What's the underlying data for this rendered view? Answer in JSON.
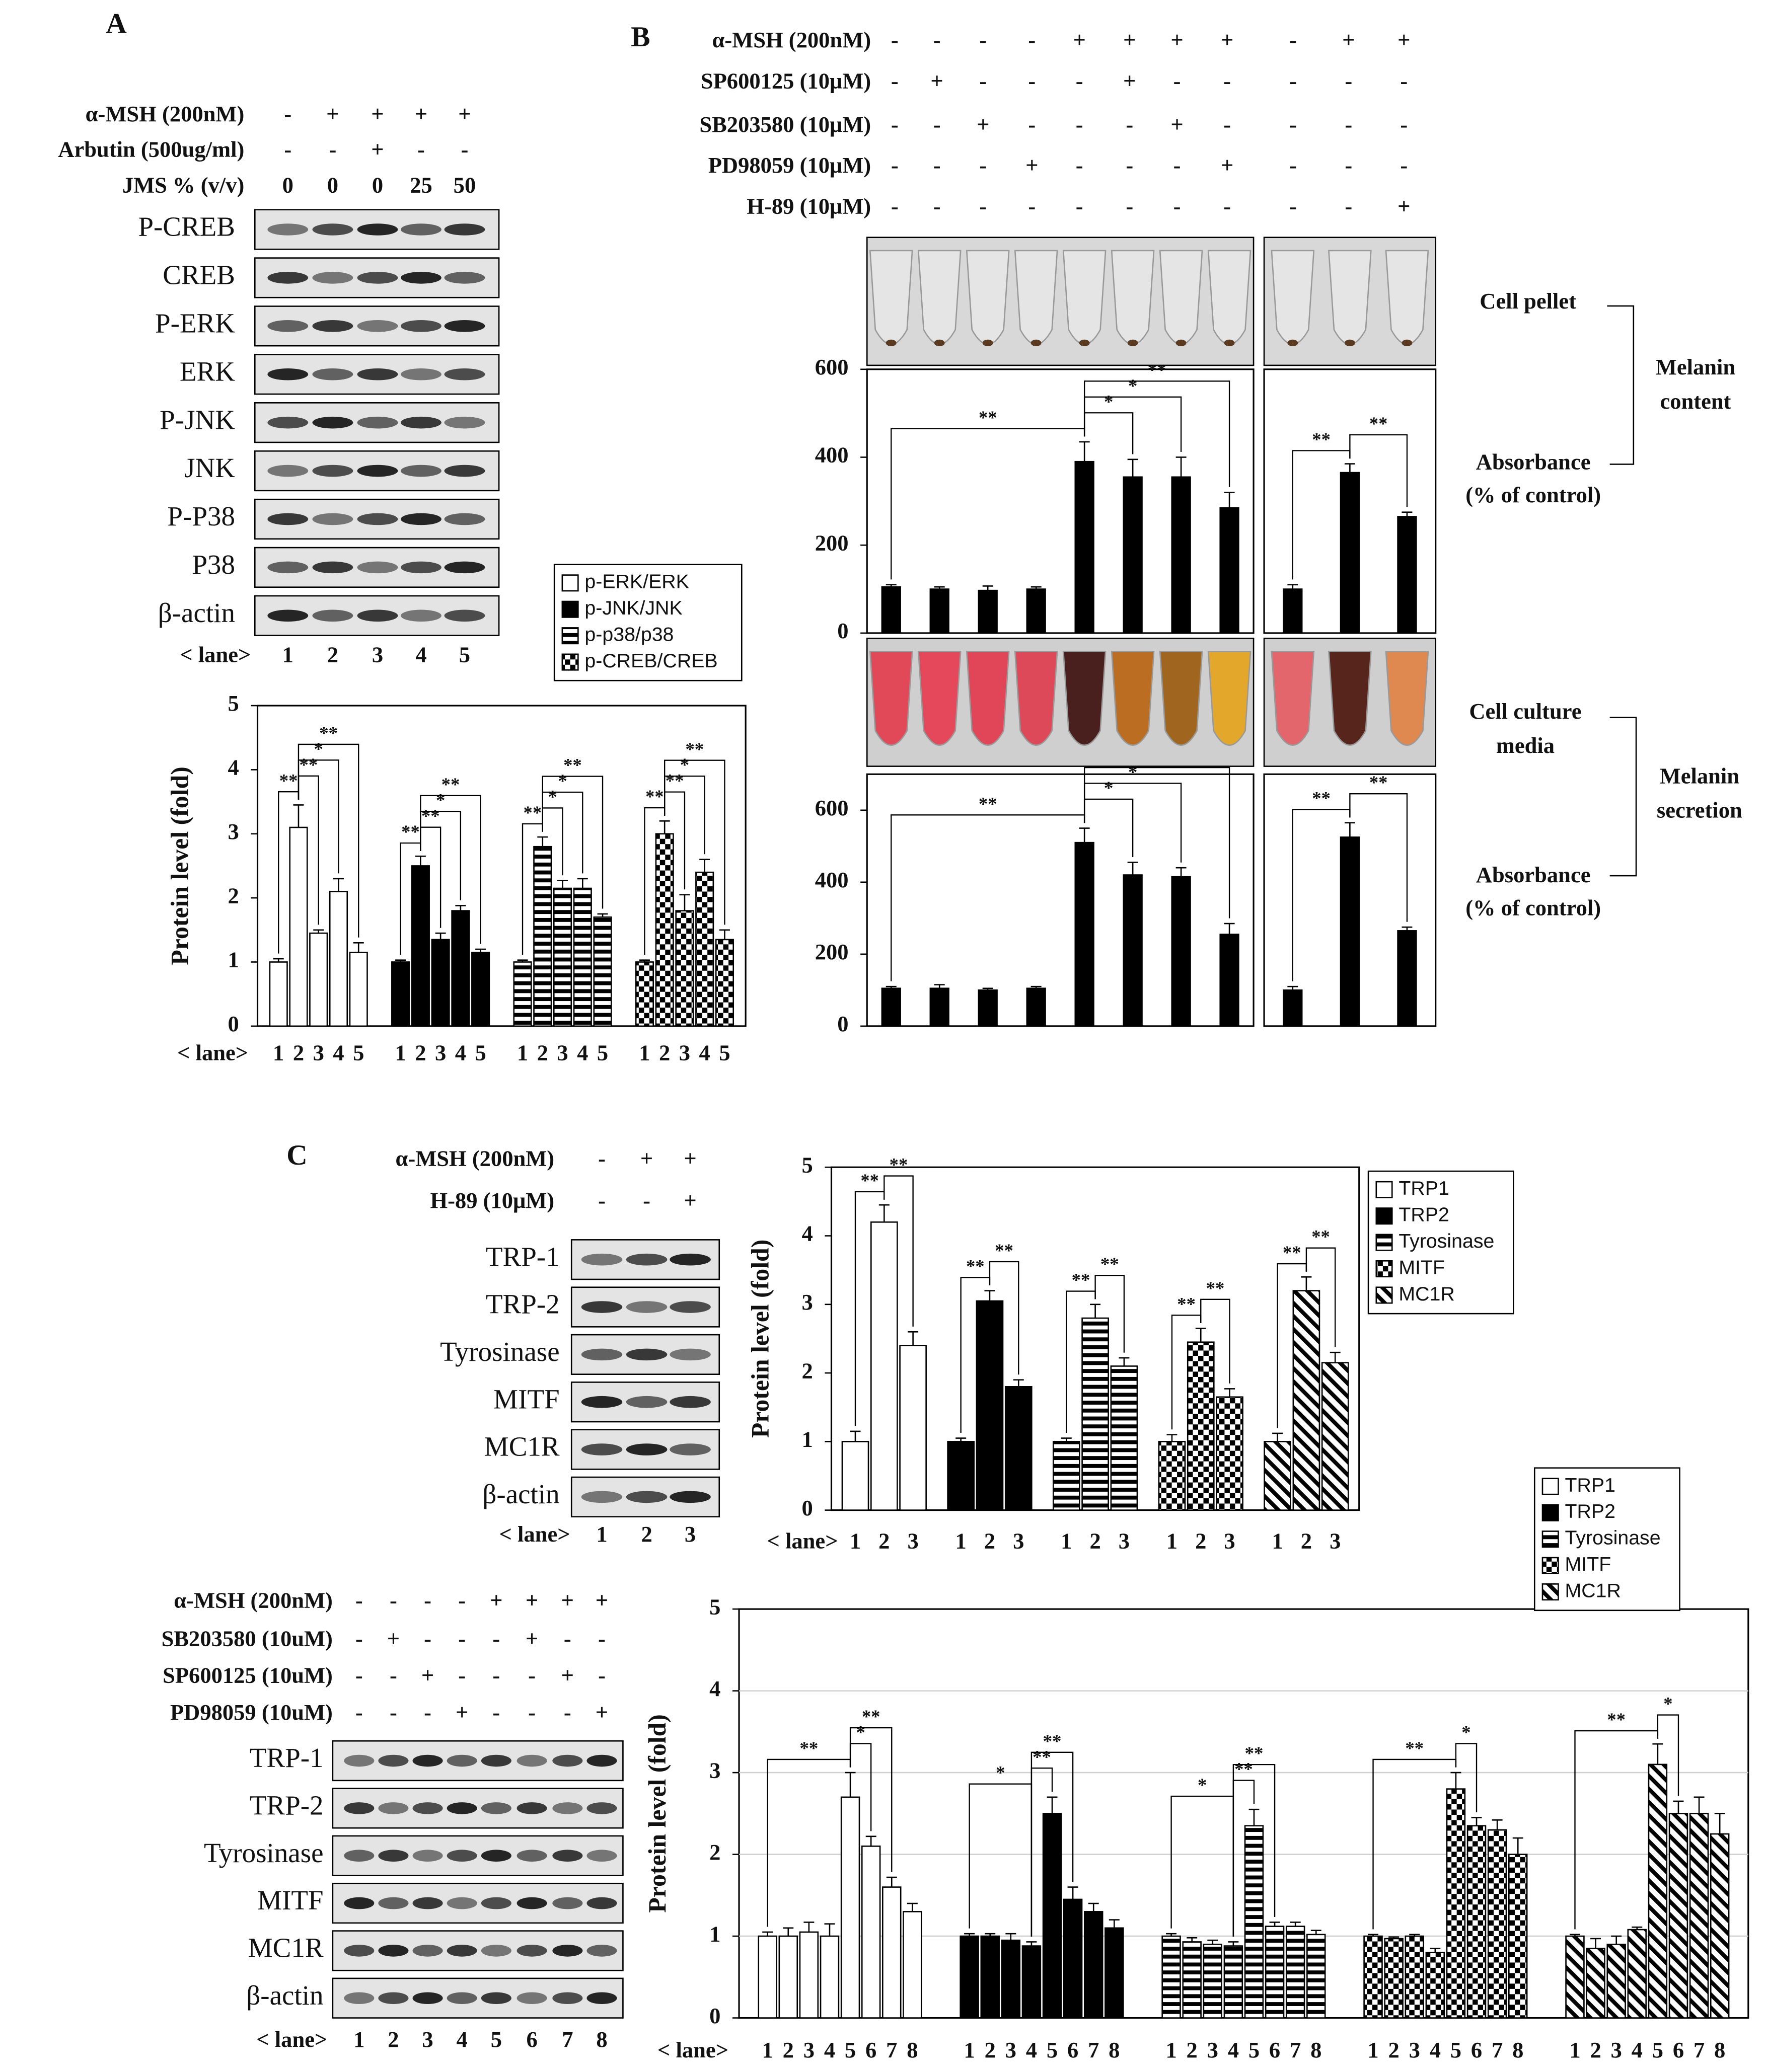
{
  "panels": {
    "a": "A",
    "b": "B",
    "c": "C"
  },
  "blot_a": {
    "treatments": [
      {
        "label": "α-MSH (200nM)",
        "marks": [
          "-",
          "+",
          "+",
          "+",
          "+"
        ]
      },
      {
        "label": "Arbutin (500ug/ml)",
        "marks": [
          "-",
          "-",
          "+",
          "-",
          "-"
        ]
      },
      {
        "label": "JMS % (v/v)",
        "marks": [
          "0",
          "0",
          "0",
          "25",
          "50"
        ]
      }
    ],
    "rows": [
      "P-CREB",
      "CREB",
      "P-ERK",
      "ERK",
      "P-JNK",
      "JNK",
      "P-P38",
      "P38",
      "β-actin"
    ],
    "lane_label": "< lane>",
    "lanes": [
      "1",
      "2",
      "3",
      "4",
      "5"
    ]
  },
  "table_b": {
    "treatments": [
      {
        "label": "α-MSH (200nM)",
        "marks": [
          "-",
          "-",
          "-",
          "-",
          "+",
          "+",
          "+",
          "+",
          "-",
          "+",
          "+"
        ]
      },
      {
        "label": "SP600125 (10μM)",
        "marks": [
          "-",
          "+",
          "-",
          "-",
          "-",
          "+",
          "-",
          "-",
          "-",
          "-",
          "-"
        ]
      },
      {
        "label": "SB203580 (10μM)",
        "marks": [
          "-",
          "-",
          "+",
          "-",
          "-",
          "-",
          "+",
          "-",
          "-",
          "-",
          "-"
        ]
      },
      {
        "label": "PD98059 (10μM)",
        "marks": [
          "-",
          "-",
          "-",
          "+",
          "-",
          "-",
          "-",
          "+",
          "-",
          "-",
          "-"
        ]
      },
      {
        "label": "H-89 (10μM)",
        "marks": [
          "-",
          "-",
          "-",
          "-",
          "-",
          "-",
          "-",
          "-",
          "-",
          "-",
          "+"
        ]
      }
    ]
  },
  "panel_b_labels": {
    "cell_pellet": "Cell pellet",
    "melanin_content": [
      "Melanin",
      "content"
    ],
    "absorbance_content": [
      "Absorbance",
      "(% of control)"
    ],
    "cell_culture_media": [
      "Cell culture",
      "media"
    ],
    "melanin_secretion": [
      "Melanin",
      "secretion"
    ],
    "absorbance_secretion": [
      "Absorbance",
      "(% of control)"
    ]
  },
  "blot_c_top": {
    "treatments": [
      {
        "label": "α-MSH (200nM)",
        "marks": [
          "-",
          "+",
          "+"
        ]
      },
      {
        "label": "H-89 (10μM)",
        "marks": [
          "-",
          "-",
          "+"
        ]
      }
    ],
    "rows": [
      "TRP-1",
      "TRP-2",
      "Tyrosinase",
      "MITF",
      "MC1R",
      "β-actin"
    ],
    "lane_label": "< lane>",
    "lanes": [
      "1",
      "2",
      "3"
    ]
  },
  "blot_c_bottom": {
    "treatments": [
      {
        "label": "α-MSH (200nM)",
        "marks": [
          "-",
          "-",
          "-",
          "-",
          "+",
          "+",
          "+",
          "+"
        ]
      },
      {
        "label": "SB203580 (10uM)",
        "marks": [
          "-",
          "+",
          "-",
          "-",
          "-",
          "+",
          "-",
          "-"
        ]
      },
      {
        "label": "SP600125 (10uM)",
        "marks": [
          "-",
          "-",
          "+",
          "-",
          "-",
          "-",
          "+",
          "-"
        ]
      },
      {
        "label": "PD98059 (10uM)",
        "marks": [
          "-",
          "-",
          "-",
          "+",
          "-",
          "-",
          "-",
          "+"
        ]
      }
    ],
    "rows": [
      "TRP-1",
      "TRP-2",
      "Tyrosinase",
      "MITF",
      "MC1R",
      "β-actin"
    ],
    "lane_label": "< lane>",
    "lanes": [
      "1",
      "2",
      "3",
      "4",
      "5",
      "6",
      "7",
      "8"
    ]
  },
  "chart_data": [
    {
      "type": "bar",
      "ylabel": "Protein level (fold)",
      "lane_label": "< lane>",
      "categories": [
        "1",
        "2",
        "3",
        "4",
        "5"
      ],
      "ylim": [
        0,
        5
      ],
      "yticks": [
        0,
        1,
        2,
        3,
        4,
        5
      ],
      "grid": false,
      "series": [
        {
          "name": "p-ERK/ERK",
          "color": "#ffffff",
          "values": [
            1.0,
            3.1,
            1.45,
            2.1,
            1.15
          ],
          "errors": [
            0.05,
            0.35,
            0.05,
            0.2,
            0.15
          ],
          "sig": [
            null,
            "**",
            "**",
            "*",
            "**"
          ]
        },
        {
          "name": "p-JNK/JNK",
          "color": "#000000",
          "values": [
            1.0,
            2.5,
            1.35,
            1.8,
            1.15
          ],
          "errors": [
            0.03,
            0.15,
            0.1,
            0.08,
            0.05
          ],
          "sig": [
            null,
            "**",
            "**",
            "*",
            "**"
          ]
        },
        {
          "name": "p-p38/p38",
          "color": "#000000",
          "pattern": "horizontal-stripes",
          "values": [
            1.0,
            2.8,
            2.15,
            2.15,
            1.7
          ],
          "errors": [
            0.03,
            0.15,
            0.12,
            0.15,
            0.05
          ],
          "sig": [
            null,
            "**",
            "*",
            "*",
            "**"
          ]
        },
        {
          "name": "p-CREB/CREB",
          "color": "#000000",
          "pattern": "checkerboard",
          "values": [
            1.0,
            3.0,
            1.8,
            2.4,
            1.35
          ],
          "errors": [
            0.03,
            0.2,
            0.25,
            0.2,
            0.15
          ],
          "sig": [
            null,
            "**",
            "**",
            "*",
            "**"
          ]
        }
      ]
    },
    {
      "type": "bar",
      "color": "#000000",
      "ylim": [
        0,
        600
      ],
      "yticks": [
        0,
        200,
        400,
        600
      ],
      "values": [
        105,
        100,
        97,
        100,
        390,
        355,
        355,
        285
      ],
      "errors": [
        5,
        5,
        10,
        5,
        45,
        40,
        45,
        35
      ],
      "sig": [
        null,
        null,
        null,
        null,
        "**",
        "*",
        "*",
        "**"
      ]
    },
    {
      "type": "bar",
      "color": "#000000",
      "ylim": [
        0,
        600
      ],
      "values": [
        100,
        365,
        265
      ],
      "errors": [
        10,
        20,
        10
      ],
      "sig": [
        null,
        "**",
        "**"
      ]
    },
    {
      "type": "bar",
      "color": "#000000",
      "ylim": [
        0,
        700
      ],
      "yticks": [
        0,
        200,
        400,
        600
      ],
      "values": [
        105,
        105,
        100,
        105,
        510,
        420,
        415,
        255
      ],
      "errors": [
        5,
        10,
        5,
        5,
        40,
        35,
        25,
        30
      ],
      "sig": [
        null,
        null,
        null,
        null,
        "**",
        "*",
        "*",
        "**"
      ]
    },
    {
      "type": "bar",
      "color": "#000000",
      "ylim": [
        0,
        700
      ],
      "values": [
        100,
        525,
        265
      ],
      "errors": [
        10,
        40,
        10
      ],
      "sig": [
        null,
        "**",
        "**"
      ]
    },
    {
      "type": "bar",
      "ylabel": "Protein level (fold)",
      "lane_label": "< lane>",
      "categories": [
        "1",
        "2",
        "3"
      ],
      "ylim": [
        0,
        5
      ],
      "yticks": [
        0,
        1,
        2,
        3,
        4,
        5
      ],
      "grid": false,
      "series": [
        {
          "name": "TRP1",
          "color": "#ffffff",
          "values": [
            1.0,
            4.2,
            2.4
          ],
          "errors": [
            0.15,
            0.25,
            0.2
          ],
          "sig": [
            null,
            "**",
            "**"
          ]
        },
        {
          "name": "TRP2",
          "color": "#000000",
          "values": [
            1.0,
            3.05,
            1.8
          ],
          "errors": [
            0.05,
            0.15,
            0.1
          ],
          "sig": [
            null,
            "**",
            "**"
          ]
        },
        {
          "name": "Tyrosinase",
          "color": "#000000",
          "pattern": "horizontal-stripes",
          "values": [
            1.0,
            2.8,
            2.1
          ],
          "errors": [
            0.05,
            0.2,
            0.12
          ],
          "sig": [
            null,
            "**",
            "**"
          ]
        },
        {
          "name": "MITF",
          "color": "#000000",
          "pattern": "checkerboard",
          "values": [
            1.0,
            2.45,
            1.65
          ],
          "errors": [
            0.1,
            0.2,
            0.12
          ],
          "sig": [
            null,
            "**",
            "**"
          ]
        },
        {
          "name": "MC1R",
          "color": "#000000",
          "pattern": "diagonal-stripes",
          "values": [
            1.0,
            3.2,
            2.15
          ],
          "errors": [
            0.12,
            0.2,
            0.15
          ],
          "sig": [
            null,
            "**",
            "**"
          ]
        }
      ]
    },
    {
      "type": "bar",
      "ylabel": "Protein level (fold)",
      "lane_label": "< lane>",
      "categories": [
        "1",
        "2",
        "3",
        "4",
        "5",
        "6",
        "7",
        "8"
      ],
      "ylim": [
        0,
        5
      ],
      "yticks": [
        0,
        1,
        2,
        3,
        4,
        5
      ],
      "grid": true,
      "series": [
        {
          "name": "TRP1",
          "color": "#ffffff",
          "values": [
            1.0,
            1.0,
            1.05,
            1.0,
            2.7,
            2.1,
            1.6,
            1.3
          ],
          "errors": [
            0.05,
            0.1,
            0.12,
            0.15,
            0.3,
            0.12,
            0.12,
            0.1
          ],
          "sig": [
            null,
            null,
            null,
            null,
            "**",
            "*",
            "**",
            null
          ]
        },
        {
          "name": "TRP2",
          "color": "#000000",
          "values": [
            1.0,
            1.0,
            0.95,
            0.88,
            2.5,
            1.45,
            1.3,
            1.1
          ],
          "errors": [
            0.03,
            0.03,
            0.08,
            0.05,
            0.2,
            0.15,
            0.1,
            0.1
          ],
          "sig": [
            null,
            null,
            null,
            "*",
            "**",
            "**",
            null,
            null
          ]
        },
        {
          "name": "Tyrosinase",
          "color": "#000000",
          "pattern": "horizontal-stripes",
          "values": [
            1.0,
            0.93,
            0.9,
            0.88,
            2.35,
            1.12,
            1.12,
            1.02
          ],
          "errors": [
            0.03,
            0.05,
            0.05,
            0.05,
            0.2,
            0.05,
            0.05,
            0.05
          ],
          "sig": [
            null,
            null,
            null,
            "*",
            "**",
            "**",
            null,
            null
          ]
        },
        {
          "name": "MITF",
          "color": "#000000",
          "pattern": "checkerboard",
          "values": [
            1.0,
            0.97,
            1.0,
            0.8,
            2.8,
            2.35,
            2.3,
            2.0
          ],
          "errors": [
            0.02,
            0.02,
            0.02,
            0.05,
            0.2,
            0.1,
            0.12,
            0.2
          ],
          "sig": [
            null,
            null,
            null,
            null,
            "**",
            "*",
            null,
            null
          ]
        },
        {
          "name": "MC1R",
          "color": "#000000",
          "pattern": "diagonal-stripes",
          "values": [
            1.0,
            0.85,
            0.9,
            1.08,
            3.1,
            2.5,
            2.5,
            2.25
          ],
          "errors": [
            0.02,
            0.12,
            0.1,
            0.03,
            0.25,
            0.15,
            0.2,
            0.25
          ],
          "sig": [
            null,
            null,
            null,
            null,
            "**",
            "*",
            null,
            null
          ]
        }
      ]
    }
  ]
}
